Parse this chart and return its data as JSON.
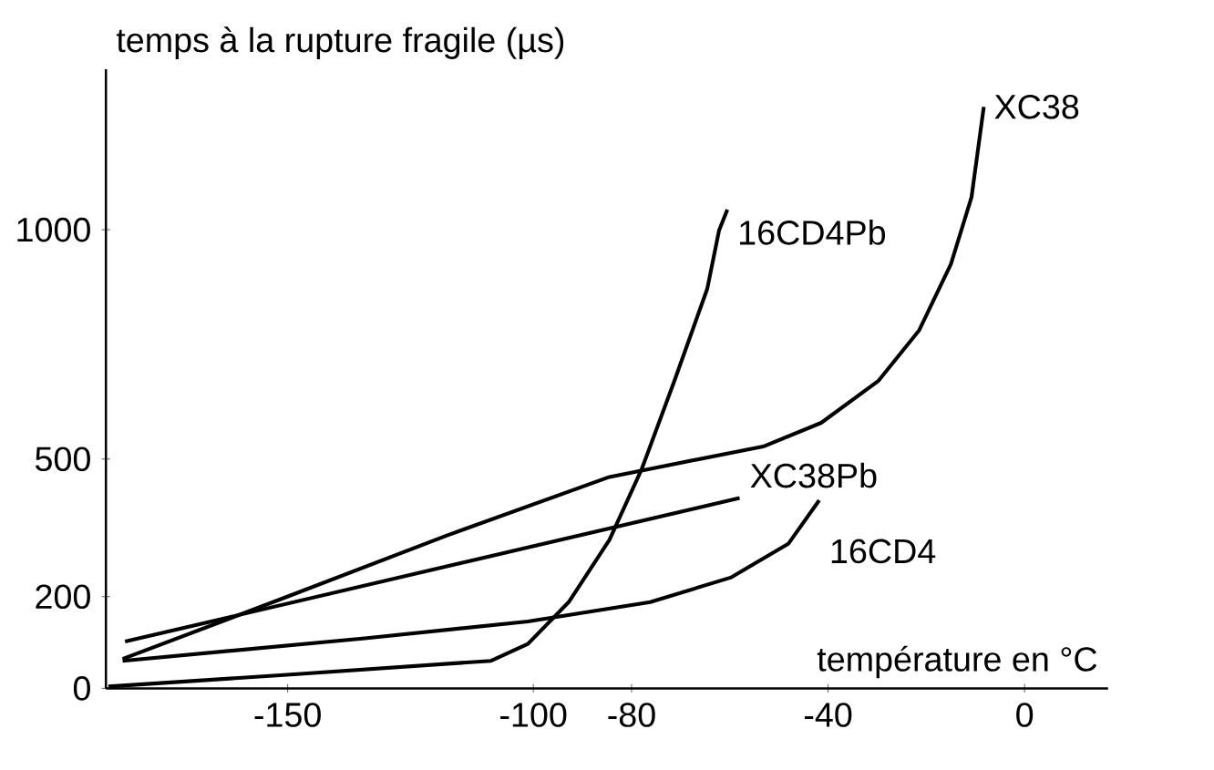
{
  "chart_data": {
    "type": "line",
    "xlabel": "température en °C",
    "ylabel": "temps à la rupture fragile (µs)",
    "xlim": [
      -187,
      17
    ],
    "ylim": [
      0,
      1350
    ],
    "xticks": [
      -150,
      -100,
      -80,
      -40,
      0
    ],
    "yticks": [
      0,
      200,
      500,
      1000
    ],
    "grid": false,
    "marker": "none",
    "line_style": "solid",
    "series": [
      {
        "name": "XC38",
        "color": "#000000",
        "x": [
          -183.6,
          -150.8,
          -117.7,
          -84.5,
          -53.0,
          -41.4,
          -29.8,
          -21.5,
          -15.0,
          -10.8,
          -8.3
        ],
        "values": [
          64,
          197,
          333,
          461,
          528,
          579,
          670,
          780,
          925,
          1071,
          1268
        ]
      },
      {
        "name": "XC38Pb",
        "color": "#000000",
        "x": [
          -183.1,
          -58.0
        ],
        "values": [
          102,
          415
        ]
      },
      {
        "name": "16CD4",
        "color": "#000000",
        "x": [
          -183.6,
          -134.3,
          -101.1,
          -76.2,
          -59.7,
          -48.1,
          -41.8
        ],
        "values": [
          60,
          109,
          146,
          188,
          242,
          315,
          410
        ]
      },
      {
        "name": "16CD4Pb",
        "color": "#000000",
        "x": [
          -186.5,
          -150.8,
          -108.6,
          -101.1,
          -92.8,
          -84.5,
          -77.9,
          -71.3,
          -64.6,
          -62.2,
          -60.5
        ],
        "values": [
          4,
          29,
          60,
          97,
          188,
          324,
          479,
          670,
          871,
          998,
          1044
        ]
      }
    ]
  }
}
